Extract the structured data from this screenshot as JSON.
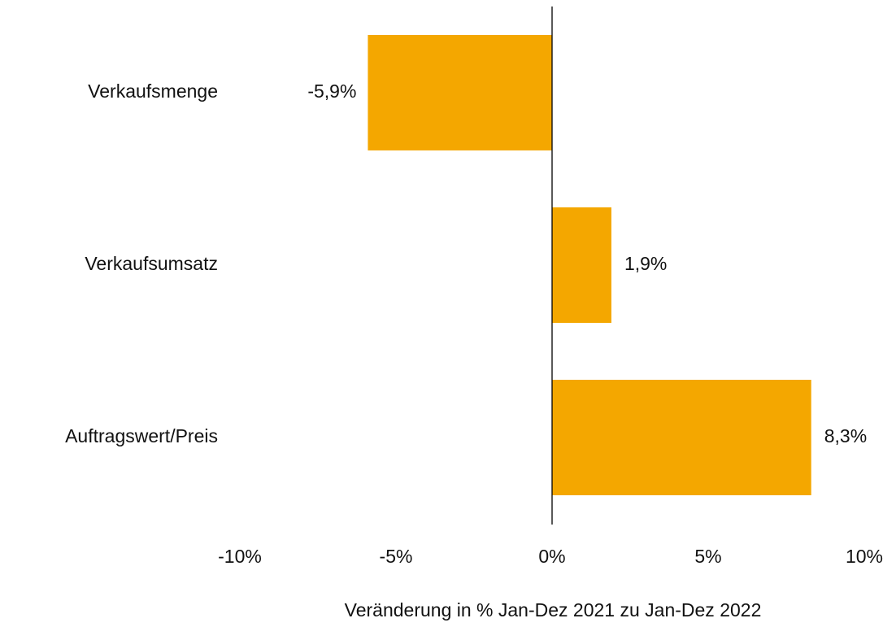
{
  "chart_data": {
    "type": "barh",
    "xlabel": "Veränderung in % Jan-Dez 2021 zu Jan-Dez 2022",
    "categories": [
      "Verkaufsmenge",
      "Verkaufsumsatz",
      "Auftragswert/Preis"
    ],
    "values": [
      -5.9,
      1.9,
      8.3
    ],
    "value_labels": [
      "-5,9%",
      "1,9%",
      "8,3%"
    ],
    "color": "#f4a700",
    "xlim": [
      -10,
      10
    ],
    "xticks": [
      {
        "value": -10,
        "label": "-10%"
      },
      {
        "value": -5,
        "label": "-5%"
      },
      {
        "value": 0,
        "label": "0%"
      },
      {
        "value": 5,
        "label": "5%"
      },
      {
        "value": 10,
        "label": "10%"
      }
    ],
    "grid": false
  }
}
